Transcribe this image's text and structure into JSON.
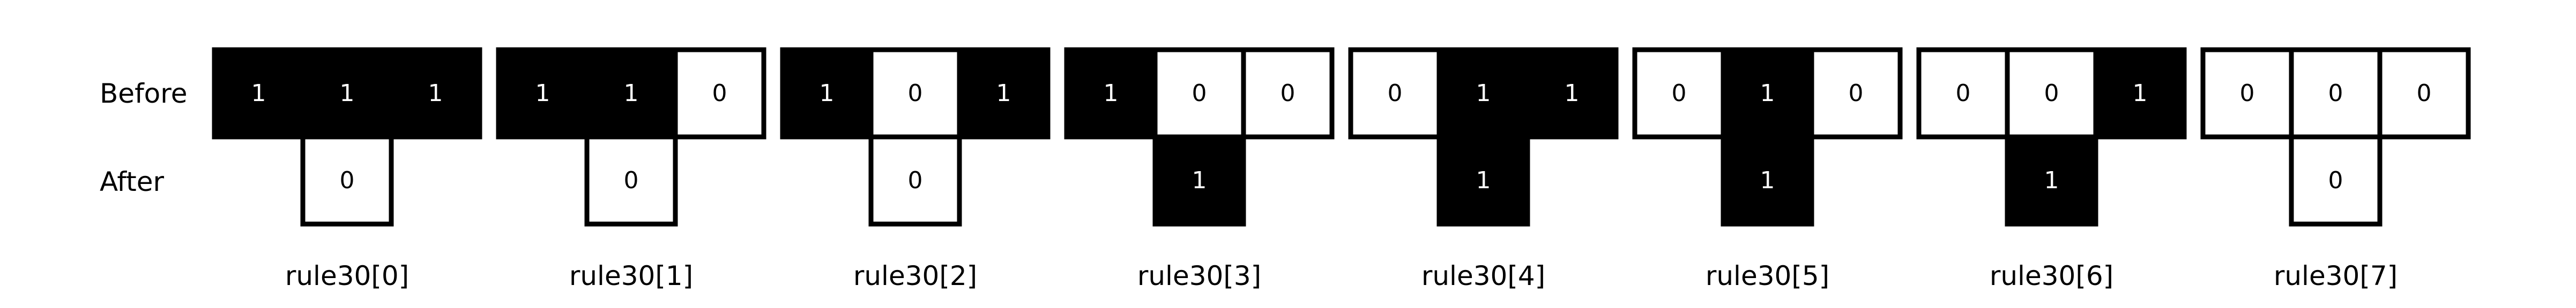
{
  "row_labels": {
    "before": "Before",
    "after": "After"
  },
  "colors": {
    "on": "#000000",
    "off": "#ffffff",
    "text_on": "#ffffff",
    "text_off": "#000000"
  },
  "rules": [
    {
      "caption": "rule30[0]",
      "before": [
        "1",
        "1",
        "1"
      ],
      "after": "0"
    },
    {
      "caption": "rule30[1]",
      "before": [
        "1",
        "1",
        "0"
      ],
      "after": "0"
    },
    {
      "caption": "rule30[2]",
      "before": [
        "1",
        "0",
        "1"
      ],
      "after": "0"
    },
    {
      "caption": "rule30[3]",
      "before": [
        "1",
        "0",
        "0"
      ],
      "after": "1"
    },
    {
      "caption": "rule30[4]",
      "before": [
        "0",
        "1",
        "1"
      ],
      "after": "1"
    },
    {
      "caption": "rule30[5]",
      "before": [
        "0",
        "1",
        "0"
      ],
      "after": "1"
    },
    {
      "caption": "rule30[6]",
      "before": [
        "0",
        "0",
        "1"
      ],
      "after": "1"
    },
    {
      "caption": "rule30[7]",
      "before": [
        "0",
        "0",
        "0"
      ],
      "after": "0"
    }
  ]
}
